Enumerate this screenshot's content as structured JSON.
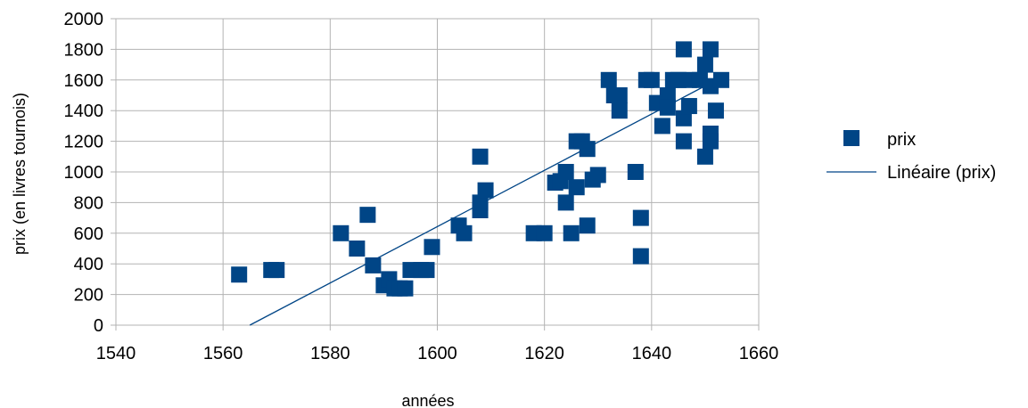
{
  "chart_data": {
    "type": "scatter",
    "title": "",
    "xlabel": "années",
    "ylabel": "prix (en livres tournois)",
    "xlim": [
      1540,
      1660
    ],
    "ylim": [
      0,
      2000
    ],
    "x_ticks": [
      "1540",
      "1560",
      "1580",
      "1600",
      "1620",
      "1640",
      "1660"
    ],
    "y_ticks": [
      "0",
      "200",
      "400",
      "600",
      "800",
      "1000",
      "1200",
      "1400",
      "1600",
      "1800",
      "2000"
    ],
    "grid": true,
    "legend_position": "right",
    "series": [
      {
        "name": "prix",
        "marker": "square",
        "color": "#004586",
        "points": [
          [
            1563,
            330
          ],
          [
            1569,
            360
          ],
          [
            1570,
            360
          ],
          [
            1582,
            600
          ],
          [
            1585,
            500
          ],
          [
            1587,
            720
          ],
          [
            1588,
            390
          ],
          [
            1590,
            260
          ],
          [
            1591,
            300
          ],
          [
            1592,
            240
          ],
          [
            1593,
            240
          ],
          [
            1594,
            240
          ],
          [
            1595,
            360
          ],
          [
            1597,
            360
          ],
          [
            1598,
            360
          ],
          [
            1599,
            510
          ],
          [
            1604,
            650
          ],
          [
            1605,
            600
          ],
          [
            1608,
            750
          ],
          [
            1608,
            800
          ],
          [
            1609,
            880
          ],
          [
            1608,
            1100
          ],
          [
            1618,
            600
          ],
          [
            1620,
            600
          ],
          [
            1622,
            930
          ],
          [
            1623,
            940
          ],
          [
            1624,
            1000
          ],
          [
            1624,
            800
          ],
          [
            1625,
            600
          ],
          [
            1626,
            900
          ],
          [
            1626,
            1200
          ],
          [
            1627,
            1200
          ],
          [
            1628,
            1150
          ],
          [
            1628,
            650
          ],
          [
            1629,
            950
          ],
          [
            1630,
            980
          ],
          [
            1632,
            1600
          ],
          [
            1633,
            1500
          ],
          [
            1634,
            1400
          ],
          [
            1634,
            1500
          ],
          [
            1637,
            1000
          ],
          [
            1638,
            450
          ],
          [
            1638,
            700
          ],
          [
            1639,
            1600
          ],
          [
            1640,
            1600
          ],
          [
            1641,
            1450
          ],
          [
            1642,
            1300
          ],
          [
            1643,
            1500
          ],
          [
            1643,
            1420
          ],
          [
            1644,
            1600
          ],
          [
            1645,
            1600
          ],
          [
            1646,
            1350
          ],
          [
            1646,
            1200
          ],
          [
            1646,
            1800
          ],
          [
            1647,
            1430
          ],
          [
            1647,
            1600
          ],
          [
            1649,
            1600
          ],
          [
            1650,
            1700
          ],
          [
            1650,
            1100
          ],
          [
            1651,
            1250
          ],
          [
            1651,
            1560
          ],
          [
            1651,
            1200
          ],
          [
            1651,
            1800
          ],
          [
            1652,
            1400
          ],
          [
            1653,
            1600
          ]
        ]
      },
      {
        "name": "Linéaire (prix)",
        "type": "line",
        "color": "#004586",
        "points": [
          [
            1565,
            0
          ],
          [
            1651,
            1580
          ]
        ]
      }
    ]
  }
}
